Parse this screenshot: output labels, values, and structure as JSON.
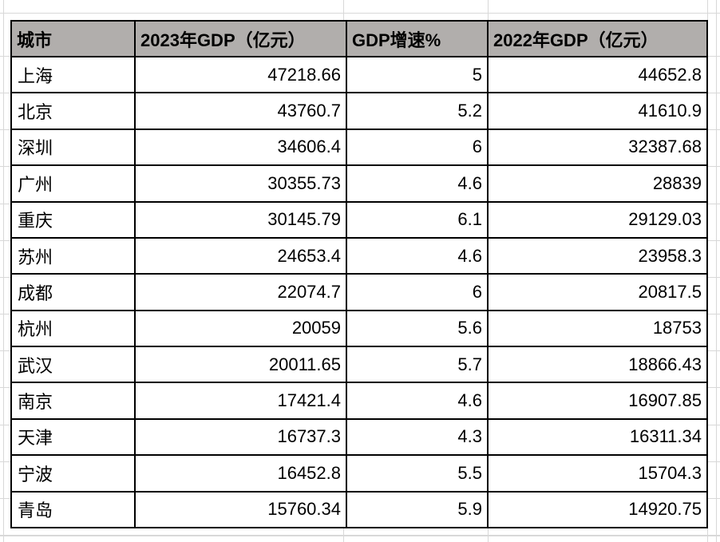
{
  "chart_data": {
    "type": "table",
    "columns": [
      "城市",
      "2023年GDP（亿元）",
      "GDP增速%",
      "2022年GDP（亿元）"
    ],
    "rows": [
      [
        "上海",
        "47218.66",
        "5",
        "44652.8"
      ],
      [
        "北京",
        "43760.7",
        "5.2",
        "41610.9"
      ],
      [
        "深圳",
        "34606.4",
        "6",
        "32387.68"
      ],
      [
        "广州",
        "30355.73",
        "4.6",
        "28839"
      ],
      [
        "重庆",
        "30145.79",
        "6.1",
        "29129.03"
      ],
      [
        "苏州",
        "24653.4",
        "4.6",
        "23958.3"
      ],
      [
        "成都",
        "22074.7",
        "6",
        "20817.5"
      ],
      [
        "杭州",
        "20059",
        "5.6",
        "18753"
      ],
      [
        "武汉",
        "20011.65",
        "5.7",
        "18866.43"
      ],
      [
        "南京",
        "17421.4",
        "4.6",
        "16907.85"
      ],
      [
        "天津",
        "16737.3",
        "4.3",
        "16311.34"
      ],
      [
        "宁波",
        "16452.8",
        "5.5",
        "15704.3"
      ],
      [
        "青岛",
        "15760.34",
        "5.9",
        "14920.75"
      ]
    ]
  },
  "colors": {
    "header_bg": "#b1aeac",
    "table_border": "#000000",
    "gridline": "#d8d8d8",
    "text": "#000000"
  }
}
